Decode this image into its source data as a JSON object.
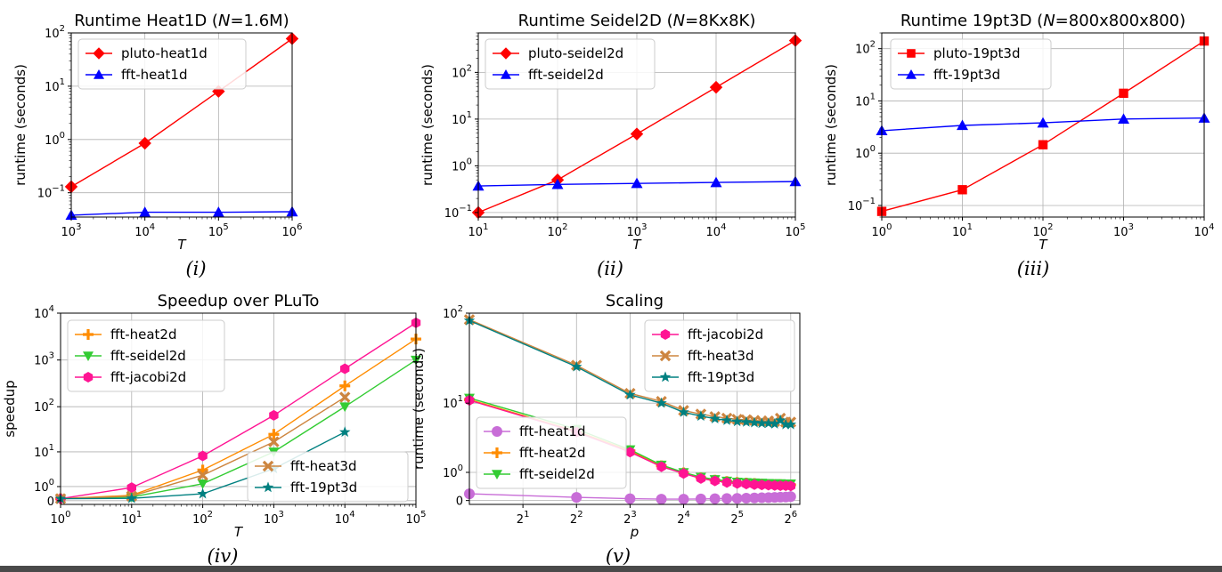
{
  "chart_data": [
    {
      "type": "line",
      "title": "Runtime Heat1D (N=1.6M)",
      "title_parts": [
        "Runtime Heat1D (",
        "N",
        "=1.6M)"
      ],
      "xlabel": "T",
      "ylabel": "runtime (seconds)",
      "caption": "(i)",
      "x_scale": "log",
      "y_scale": "log",
      "xlim": [
        1000,
        1000000
      ],
      "ylim": [
        0.035,
        100
      ],
      "x_ticks": [
        {
          "v": 1000,
          "b": "10",
          "e": "3"
        },
        {
          "v": 10000,
          "b": "10",
          "e": "4"
        },
        {
          "v": 100000,
          "b": "10",
          "e": "5"
        },
        {
          "v": 1000000,
          "b": "10",
          "e": "6"
        }
      ],
      "y_ticks": [
        {
          "v": 0.1,
          "b": "10",
          "e": "−1"
        },
        {
          "v": 1,
          "b": "10",
          "e": "0"
        },
        {
          "v": 10,
          "b": "10",
          "e": "1"
        },
        {
          "v": 100,
          "b": "10",
          "e": "2"
        }
      ],
      "grid": true,
      "legend_position": "upper-left",
      "series": [
        {
          "name": "pluto-heat1d",
          "color": "#ff0000",
          "marker": "diamond",
          "x": [
            1000,
            10000,
            100000,
            1000000
          ],
          "y": [
            0.13,
            0.85,
            8,
            78
          ]
        },
        {
          "name": "fft-heat1d",
          "color": "#0000ff",
          "marker": "triangle-up",
          "x": [
            1000,
            10000,
            100000,
            1000000
          ],
          "y": [
            0.038,
            0.043,
            0.043,
            0.044
          ]
        }
      ]
    },
    {
      "type": "line",
      "title": "Runtime Seidel2D (N=8Kx8K)",
      "title_parts": [
        "Runtime Seidel2D (",
        "N",
        "=8Kx8K)"
      ],
      "xlabel": "T",
      "ylabel": "runtime (seconds)",
      "caption": "(ii)",
      "x_scale": "log",
      "y_scale": "log",
      "xlim": [
        10,
        100000
      ],
      "ylim": [
        0.08,
        700
      ],
      "x_ticks": [
        {
          "v": 10,
          "b": "10",
          "e": "1"
        },
        {
          "v": 100,
          "b": "10",
          "e": "2"
        },
        {
          "v": 1000,
          "b": "10",
          "e": "3"
        },
        {
          "v": 10000,
          "b": "10",
          "e": "4"
        },
        {
          "v": 100000,
          "b": "10",
          "e": "5"
        }
      ],
      "y_ticks": [
        {
          "v": 0.1,
          "b": "10",
          "e": "−1"
        },
        {
          "v": 1,
          "b": "10",
          "e": "0"
        },
        {
          "v": 10,
          "b": "10",
          "e": "1"
        },
        {
          "v": 100,
          "b": "10",
          "e": "2"
        }
      ],
      "grid": true,
      "legend_position": "upper-left",
      "series": [
        {
          "name": "pluto-seidel2d",
          "color": "#ff0000",
          "marker": "diamond",
          "x": [
            10,
            100,
            1000,
            10000,
            100000
          ],
          "y": [
            0.1,
            0.5,
            4.8,
            48,
            480
          ]
        },
        {
          "name": "fft-seidel2d",
          "color": "#0000ff",
          "marker": "triangle-up",
          "x": [
            10,
            100,
            1000,
            10000,
            100000
          ],
          "y": [
            0.37,
            0.4,
            0.42,
            0.44,
            0.46
          ]
        }
      ]
    },
    {
      "type": "line",
      "title": "Runtime 19pt3D (N=800x800x800)",
      "title_parts": [
        "Runtime 19pt3D (",
        "N",
        "=800x800x800)"
      ],
      "xlabel": "T",
      "ylabel": "runtime (seconds)",
      "caption": "(iii)",
      "x_scale": "log",
      "y_scale": "log",
      "xlim": [
        1,
        10000
      ],
      "ylim": [
        0.06,
        200
      ],
      "x_ticks": [
        {
          "v": 1,
          "b": "10",
          "e": "0"
        },
        {
          "v": 10,
          "b": "10",
          "e": "1"
        },
        {
          "v": 100,
          "b": "10",
          "e": "2"
        },
        {
          "v": 1000,
          "b": "10",
          "e": "3"
        },
        {
          "v": 10000,
          "b": "10",
          "e": "4"
        }
      ],
      "y_ticks": [
        {
          "v": 0.1,
          "b": "10",
          "e": "−1"
        },
        {
          "v": 1,
          "b": "10",
          "e": "0"
        },
        {
          "v": 10,
          "b": "10",
          "e": "1"
        },
        {
          "v": 100,
          "b": "10",
          "e": "2"
        }
      ],
      "grid": true,
      "legend_position": "upper-left",
      "series": [
        {
          "name": "pluto-19pt3d",
          "color": "#ff0000",
          "marker": "square",
          "x": [
            1,
            10,
            100,
            1000,
            10000
          ],
          "y": [
            0.077,
            0.2,
            1.45,
            14,
            140
          ]
        },
        {
          "name": "fft-19pt3d",
          "color": "#0000ff",
          "marker": "triangle-up",
          "x": [
            1,
            10,
            100,
            1000,
            10000
          ],
          "y": [
            2.7,
            3.4,
            3.8,
            4.5,
            4.7
          ]
        }
      ]
    },
    {
      "type": "line",
      "title": "Speedup over PLuTo",
      "xlabel": "T",
      "ylabel": "speedup",
      "caption": "(iv)",
      "x_scale": "log",
      "y_scale": "symlog",
      "xlim": [
        1,
        100000
      ],
      "ylim": [
        -0.2,
        10000
      ],
      "x_ticks": [
        {
          "v": 1,
          "b": "10",
          "e": "0"
        },
        {
          "v": 10,
          "b": "10",
          "e": "1"
        },
        {
          "v": 100,
          "b": "10",
          "e": "2"
        },
        {
          "v": 1000,
          "b": "10",
          "e": "3"
        },
        {
          "v": 10000,
          "b": "10",
          "e": "4"
        },
        {
          "v": 100000,
          "b": "10",
          "e": "5"
        }
      ],
      "y_ticks": [
        {
          "v": 0,
          "b": "0",
          "e": ""
        },
        {
          "v": 1,
          "b": "10",
          "e": "0"
        },
        {
          "v": 10,
          "b": "10",
          "e": "1"
        },
        {
          "v": 100,
          "b": "10",
          "e": "2"
        },
        {
          "v": 1000,
          "b": "10",
          "e": "3"
        },
        {
          "v": 10000,
          "b": "10",
          "e": "4"
        }
      ],
      "grid": true,
      "legend_position": "upper-left and lower-right",
      "series": [
        {
          "name": "fft-heat2d",
          "color": "#ff8c00",
          "marker": "plus",
          "legend_group": 0,
          "x": [
            1,
            10,
            100,
            1000,
            10000,
            100000
          ],
          "y": [
            0.1,
            0.3,
            3.5,
            25,
            280,
            2800
          ]
        },
        {
          "name": "fft-seidel2d",
          "color": "#33cc33",
          "marker": "triangle-down",
          "legend_group": 0,
          "x": [
            1,
            10,
            100,
            1000,
            10000,
            100000
          ],
          "y": [
            0.1,
            0.2,
            1.3,
            10,
            100,
            1000
          ]
        },
        {
          "name": "fft-jacobi2d",
          "color": "#ff1493",
          "marker": "hexagon",
          "legend_group": 0,
          "x": [
            1,
            10,
            100,
            1000,
            10000,
            100000
          ],
          "y": [
            0.1,
            0.9,
            8,
            65,
            650,
            6200
          ]
        },
        {
          "name": "fft-heat3d",
          "color": "#cd853f",
          "marker": "x",
          "legend_group": 1,
          "x": [
            1,
            10,
            100,
            1000,
            10000
          ],
          "y": [
            0.1,
            0.25,
            2.5,
            17,
            160
          ]
        },
        {
          "name": "fft-19pt3d",
          "color": "#008080",
          "marker": "star",
          "legend_group": 1,
          "x": [
            1,
            10,
            100,
            1000,
            10000
          ],
          "y": [
            0.1,
            0.12,
            0.4,
            3.8,
            28
          ]
        }
      ]
    },
    {
      "type": "line",
      "title": "Scaling",
      "xlabel": "p",
      "ylabel": "runtime (seconds)",
      "caption": "(v)",
      "x_scale": "log2",
      "y_scale": "symlog",
      "xlim": [
        1,
        72
      ],
      "ylim": [
        -0.1,
        100
      ],
      "x_ticks": [
        {
          "v": 2,
          "b": "2",
          "e": "1"
        },
        {
          "v": 4,
          "b": "2",
          "e": "2"
        },
        {
          "v": 8,
          "b": "2",
          "e": "3"
        },
        {
          "v": 16,
          "b": "2",
          "e": "4"
        },
        {
          "v": 32,
          "b": "2",
          "e": "5"
        },
        {
          "v": 64,
          "b": "2",
          "e": "6"
        }
      ],
      "y_ticks": [
        {
          "v": 0,
          "b": "0",
          "e": ""
        },
        {
          "v": 1,
          "b": "10",
          "e": "0"
        },
        {
          "v": 10,
          "b": "10",
          "e": "1"
        },
        {
          "v": 100,
          "b": "10",
          "e": "2"
        }
      ],
      "grid": true,
      "legend_position": "upper-right and lower-left",
      "series": [
        {
          "name": "fft-heat1d",
          "color": "#c86dd7",
          "marker": "circle",
          "legend_group": 1,
          "x": [
            1,
            4,
            8,
            12,
            16,
            20,
            24,
            28,
            32,
            36,
            40,
            44,
            48,
            52,
            56,
            60,
            64
          ],
          "y": [
            0.18,
            0.08,
            0.045,
            0.035,
            0.035,
            0.04,
            0.045,
            0.05,
            0.055,
            0.06,
            0.065,
            0.07,
            0.075,
            0.08,
            0.085,
            0.09,
            0.1
          ]
        },
        {
          "name": "fft-heat2d",
          "color": "#ff8c00",
          "marker": "plus",
          "legend_group": 1,
          "x": [
            1,
            4,
            8,
            12,
            16,
            20,
            24,
            28,
            32,
            36,
            40,
            44,
            48,
            52,
            56,
            60,
            64
          ],
          "y": [
            11,
            4.5,
            2.4,
            1.35,
            0.98,
            0.75,
            0.65,
            0.6,
            0.56,
            0.54,
            0.52,
            0.5,
            0.49,
            0.48,
            0.48,
            0.47,
            0.47
          ]
        },
        {
          "name": "fft-seidel2d",
          "color": "#33cc33",
          "marker": "triangle-down",
          "legend_group": 1,
          "x": [
            1,
            4,
            8,
            12,
            16,
            20,
            24,
            28,
            32,
            36,
            40,
            44,
            48,
            52,
            56,
            60,
            64
          ],
          "y": [
            11.5,
            4.8,
            2.5,
            1.4,
            1.0,
            0.78,
            0.68,
            0.62,
            0.58,
            0.56,
            0.55,
            0.54,
            0.53,
            0.52,
            0.52,
            0.51,
            0.51
          ]
        },
        {
          "name": "fft-jacobi2d",
          "color": "#ff1493",
          "marker": "hexagon",
          "legend_group": 0,
          "x": [
            1,
            4,
            8,
            12,
            16,
            20,
            24,
            28,
            32,
            36,
            40,
            44,
            48,
            52,
            56,
            60,
            64
          ],
          "y": [
            10.8,
            4.4,
            2.3,
            1.3,
            0.95,
            0.72,
            0.62,
            0.56,
            0.52,
            0.5,
            0.48,
            0.47,
            0.46,
            0.45,
            0.44,
            0.44,
            0.43
          ]
        },
        {
          "name": "fft-heat3d",
          "color": "#cd853f",
          "marker": "x",
          "legend_group": 0,
          "x": [
            1,
            4,
            8,
            12,
            16,
            20,
            24,
            28,
            32,
            36,
            40,
            44,
            48,
            52,
            56,
            60,
            64
          ],
          "y": [
            85,
            27,
            13,
            10.5,
            8.2,
            7.4,
            6.9,
            6.6,
            6.4,
            6.3,
            6.2,
            6.1,
            6.1,
            6.0,
            6.6,
            5.9,
            5.9
          ]
        },
        {
          "name": "fft-19pt3d",
          "color": "#008080",
          "marker": "star",
          "legend_group": 0,
          "x": [
            1,
            4,
            8,
            12,
            16,
            20,
            24,
            28,
            32,
            36,
            40,
            44,
            48,
            52,
            56,
            60,
            64
          ],
          "y": [
            83,
            26,
            12.5,
            10,
            7.8,
            7.0,
            6.5,
            6.2,
            6.0,
            5.9,
            5.8,
            5.7,
            5.7,
            5.6,
            6.2,
            5.5,
            5.5
          ]
        }
      ]
    }
  ]
}
